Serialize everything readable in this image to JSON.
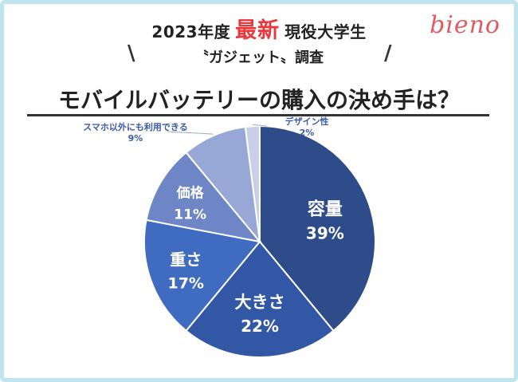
{
  "header": {
    "year": "2023年度",
    "highlight": "最新",
    "subject": "現役大学生",
    "survey": "〝ガジェット〟調査",
    "brand": "bieno"
  },
  "title": "モバイルバッテリーの購入の決め手は？",
  "colors": {
    "highlight": "#e8383d",
    "brand": "#e05a5f",
    "frame": "#bfe6ef"
  },
  "chart_data": {
    "type": "pie",
    "title": "モバイルバッテリーの購入の決め手は？",
    "slices": [
      {
        "label": "容量",
        "value": 39,
        "value_label": "39%",
        "color": "#2e4b8a"
      },
      {
        "label": "大きさ",
        "value": 22,
        "value_label": "22%",
        "color": "#3157a5"
      },
      {
        "label": "重さ",
        "value": 17,
        "value_label": "17%",
        "color": "#3f6bc0"
      },
      {
        "label": "価格",
        "value": 11,
        "value_label": "11%",
        "color": "#6f86c6"
      },
      {
        "label": "スマホ以外にも利用できる",
        "value": 9,
        "value_label": "9%",
        "color": "#97a8d6"
      },
      {
        "label": "デザイン性",
        "value": 2,
        "value_label": "2%",
        "color": "#c7d0e8"
      }
    ]
  }
}
